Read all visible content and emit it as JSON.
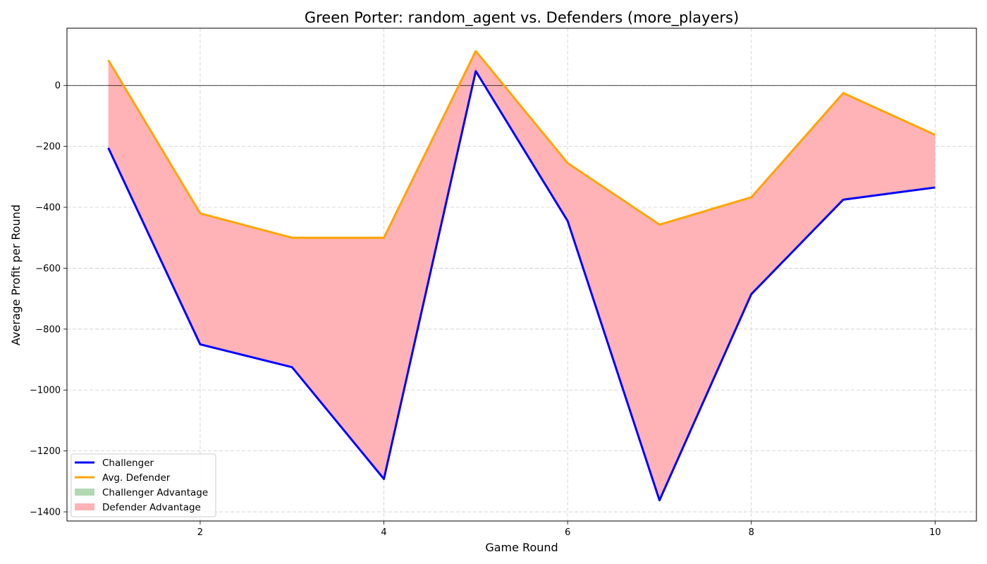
{
  "chart_data": {
    "type": "line",
    "title": "Green Porter: random_agent vs. Defenders (more_players)",
    "xlabel": "Game Round",
    "ylabel": "Average Profit per Round",
    "x": [
      1,
      2,
      3,
      4,
      5,
      6,
      7,
      8,
      9,
      10
    ],
    "xlim": [
      0.55,
      10.45
    ],
    "ylim": [
      -1430,
      188
    ],
    "xticks": [
      2,
      4,
      6,
      8,
      10
    ],
    "yticks": [
      0,
      -200,
      -400,
      -600,
      -800,
      -1000,
      -1200,
      -1400
    ],
    "grid": true,
    "legend_position": "bottom-left",
    "series": [
      {
        "name": "Challenger",
        "color": "#0000ff",
        "values": [
          -205,
          -850,
          -925,
          -1292,
          47,
          -445,
          -1362,
          -685,
          -375,
          -335
        ]
      },
      {
        "name": "Avg. Defender",
        "color": "#ffa500",
        "values": [
          83,
          -420,
          -500,
          -500,
          113,
          -255,
          -457,
          -367,
          -25,
          -162
        ]
      }
    ],
    "fills": [
      {
        "name": "Challenger Advantage",
        "color": "#b2d8b2"
      },
      {
        "name": "Defender Advantage",
        "color": "#ffb3b6"
      }
    ]
  }
}
